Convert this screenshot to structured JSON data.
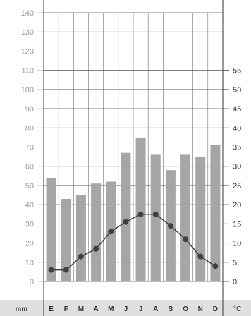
{
  "chart_data": {
    "type": "bar",
    "categories": [
      "E",
      "F",
      "M",
      "A",
      "M",
      "J",
      "J",
      "A",
      "S",
      "O",
      "N",
      "D"
    ],
    "precipitation": {
      "values": [
        54,
        43,
        45,
        51,
        52,
        67,
        75,
        66,
        58,
        66,
        65,
        71
      ],
      "unit_label": "mm",
      "ylim": [
        0,
        140
      ],
      "ticks": [
        0,
        10,
        20,
        30,
        40,
        50,
        60,
        70,
        80,
        90,
        100,
        110,
        120,
        130,
        140
      ],
      "color": "#a6a6a6"
    },
    "temperature": {
      "values": [
        3,
        3,
        6.5,
        8.5,
        13,
        15.5,
        17.5,
        17.5,
        14.5,
        11,
        6.5,
        4
      ],
      "unit_label": "°C",
      "ylim": [
        0,
        55
      ],
      "ticks": [
        0,
        5,
        10,
        15,
        20,
        25,
        30,
        35,
        40,
        45,
        50,
        55
      ],
      "color": "#404040"
    },
    "grid": true
  }
}
